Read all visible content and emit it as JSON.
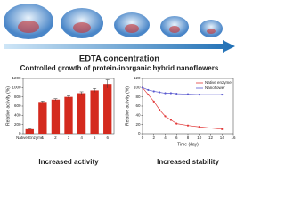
{
  "heading": {
    "arrow_label": "EDTA concentration",
    "title": "Controlled growth of protein-inorganic hybrid nanoflowers"
  },
  "chart_data": [
    {
      "type": "bar",
      "caption": "Increased activity",
      "y_label": "Relative activity (%)",
      "categories": [
        "Native Enzyme",
        "1",
        "2",
        "3",
        "4",
        "5",
        "6"
      ],
      "values": [
        100,
        690,
        740,
        800,
        880,
        940,
        1080
      ],
      "errors": [
        5,
        20,
        20,
        25,
        30,
        40,
        90
      ],
      "color": "#d42a1e",
      "ylim": [
        0,
        1200
      ],
      "yticks": [
        0,
        200,
        400,
        600,
        800,
        1000,
        1200
      ]
    },
    {
      "type": "line",
      "caption": "Increased stability",
      "x_label": "Time (day)",
      "y_label": "Relative activity (%)",
      "x": [
        0,
        1,
        2,
        3,
        4,
        5,
        6,
        8,
        10,
        14
      ],
      "series": [
        {
          "name": "Native enzyme",
          "color": "#e23a3a",
          "values": [
            100,
            85,
            70,
            52,
            38,
            30,
            22,
            18,
            15,
            10
          ]
        },
        {
          "name": "Nanoflower",
          "color": "#5a5ad0",
          "values": [
            100,
            95,
            92,
            90,
            88,
            88,
            87,
            86,
            85,
            85
          ]
        }
      ],
      "xlim": [
        0,
        16
      ],
      "xticks": [
        0,
        2,
        4,
        6,
        8,
        10,
        12,
        14,
        16
      ],
      "ylim": [
        0,
        120
      ],
      "yticks": [
        0,
        20,
        40,
        60,
        80,
        100,
        120
      ],
      "legend": "top-right"
    }
  ]
}
